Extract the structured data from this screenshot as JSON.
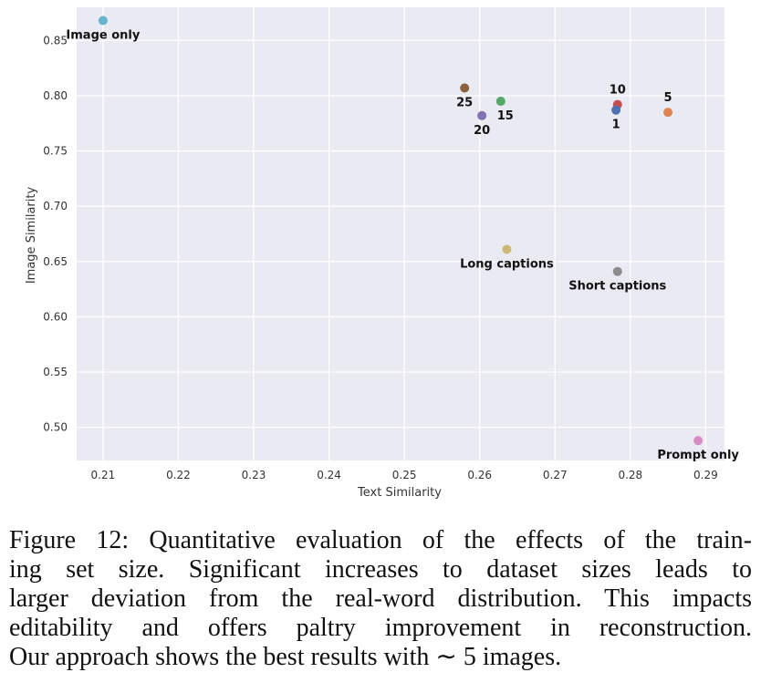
{
  "chart_data": {
    "type": "scatter",
    "xlabel": "Text Similarity",
    "ylabel": "Image Similarity",
    "xlim": [
      0.2065,
      0.2925
    ],
    "ylim": [
      0.47,
      0.88
    ],
    "xticks": [
      "0.21",
      "0.22",
      "0.23",
      "0.24",
      "0.25",
      "0.26",
      "0.27",
      "0.28",
      "0.29"
    ],
    "yticks": [
      "0.50",
      "0.55",
      "0.60",
      "0.65",
      "0.70",
      "0.75",
      "0.80",
      "0.85"
    ],
    "grid": true,
    "points": [
      {
        "label": "Image only",
        "x": 0.21,
        "y": 0.868,
        "color": "#64b5cd",
        "label_pos": "below"
      },
      {
        "label": "25",
        "x": 0.258,
        "y": 0.807,
        "color": "#8c613c",
        "label_pos": "below"
      },
      {
        "label": "15",
        "x": 0.2628,
        "y": 0.795,
        "color": "#55a868",
        "label_pos": "below-right"
      },
      {
        "label": "20",
        "x": 0.2603,
        "y": 0.782,
        "color": "#8172b3",
        "label_pos": "below"
      },
      {
        "label": "10",
        "x": 0.2783,
        "y": 0.792,
        "color": "#c44e52",
        "label_pos": "above"
      },
      {
        "label": "1",
        "x": 0.2781,
        "y": 0.787,
        "color": "#4c72b0",
        "label_pos": "below"
      },
      {
        "label": "5",
        "x": 0.285,
        "y": 0.785,
        "color": "#dd8452",
        "label_pos": "above"
      },
      {
        "label": "Long captions",
        "x": 0.2636,
        "y": 0.661,
        "color": "#ccb974",
        "label_pos": "below"
      },
      {
        "label": "Short captions",
        "x": 0.2783,
        "y": 0.641,
        "color": "#8c8c8c",
        "label_pos": "below"
      },
      {
        "label": "Prompt only",
        "x": 0.289,
        "y": 0.488,
        "color": "#da8bc3",
        "label_pos": "below"
      }
    ]
  },
  "caption": {
    "lines": [
      "Figure 12: Quantitative evaluation of the effects of the train-",
      "ing set size.  Significant increases to dataset sizes leads to",
      "larger deviation from the real-word distribution. This impacts",
      "editability and offers paltry improvement in reconstruction.",
      "Our approach shows the best results with ∼ 5 images."
    ]
  }
}
